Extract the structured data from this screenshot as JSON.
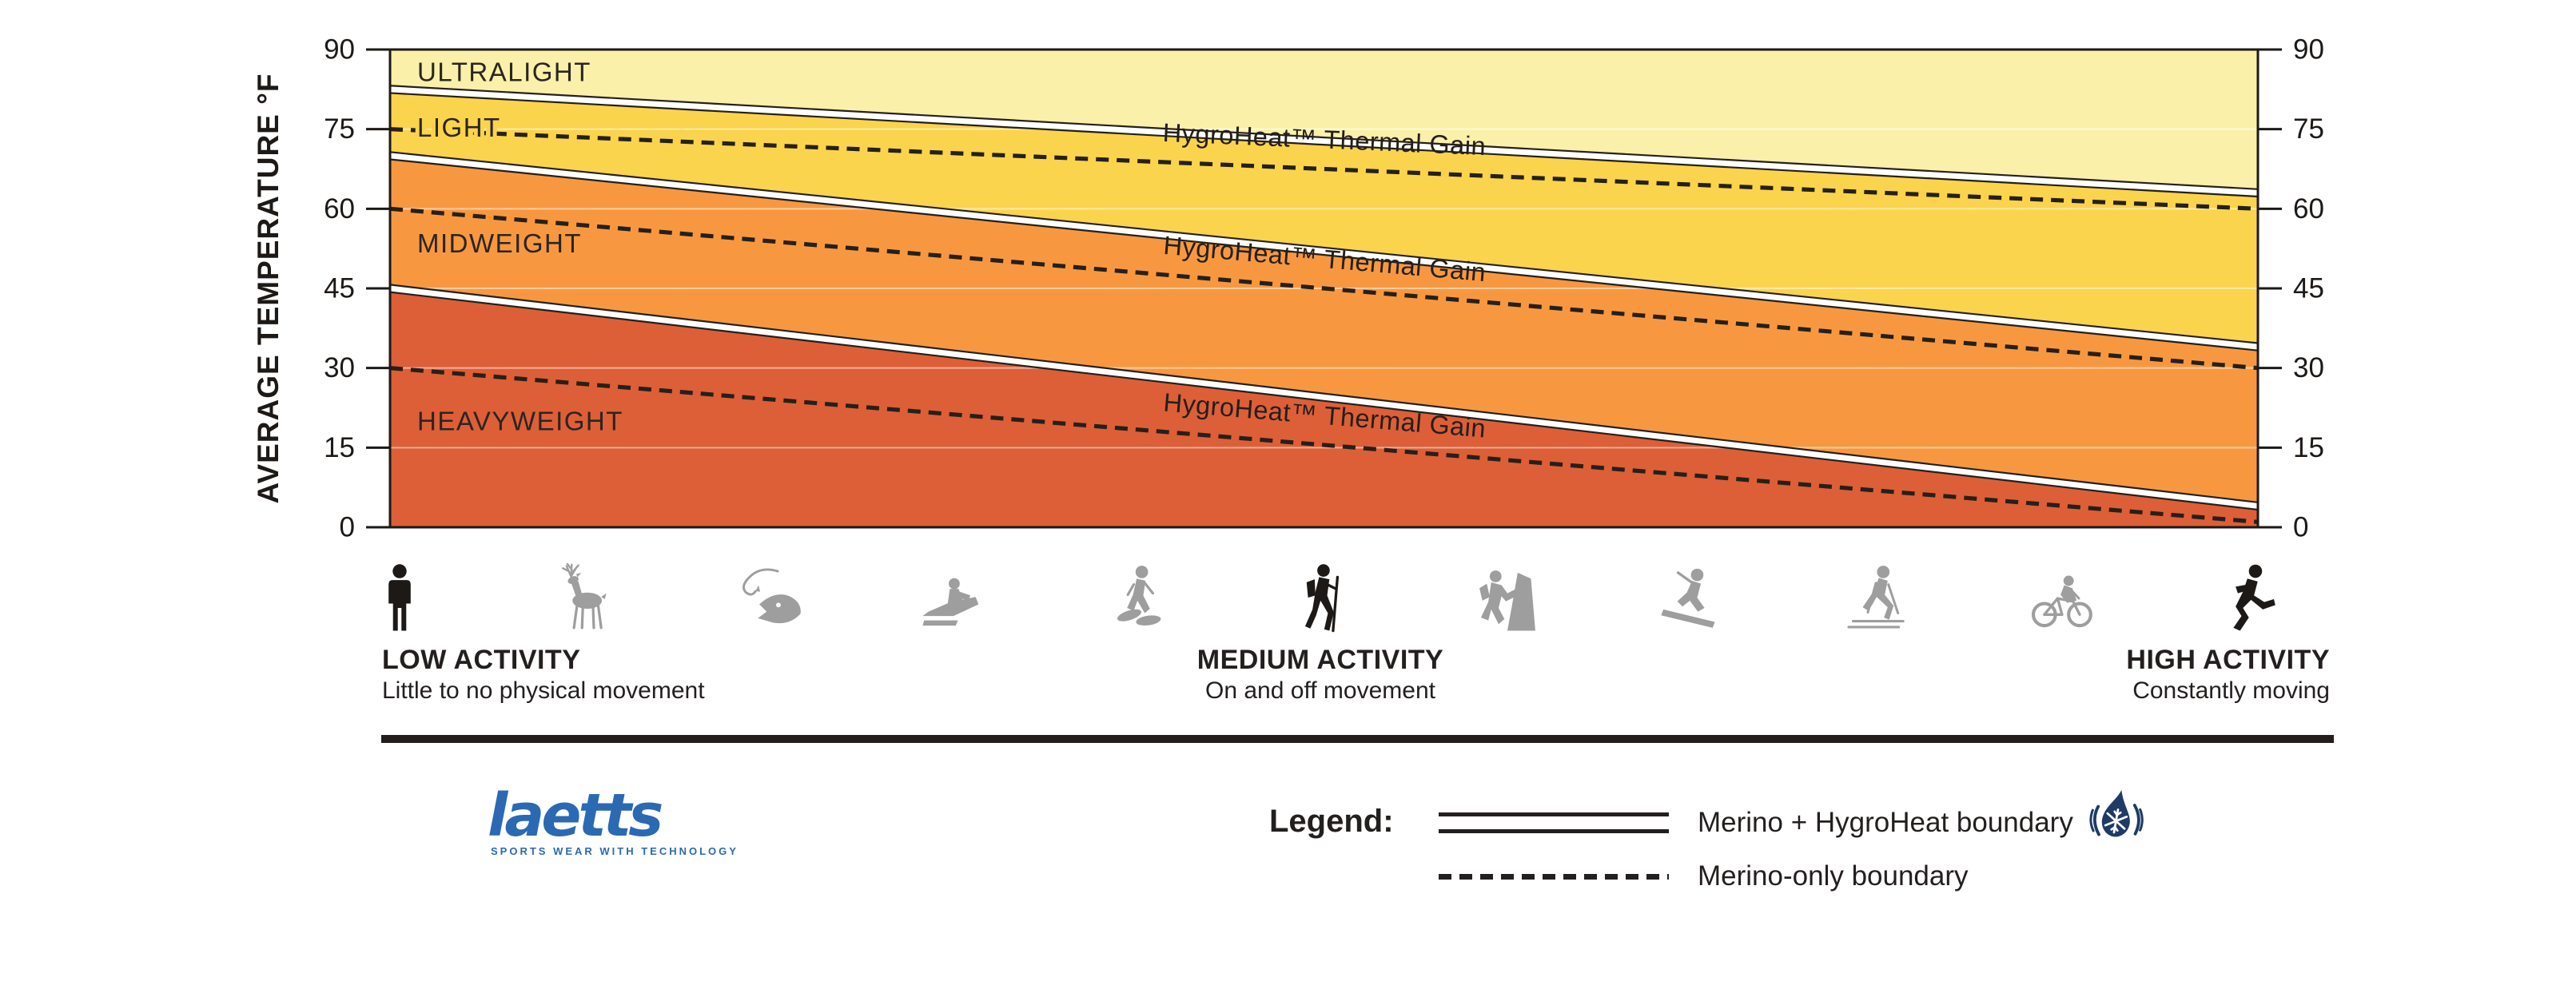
{
  "chart_data": {
    "type": "area",
    "title": "",
    "ylabel": "AVERAGE TEMPERATURE °F",
    "ylim": [
      0,
      90
    ],
    "yticks": [
      0,
      15,
      30,
      45,
      60,
      75,
      90
    ],
    "grid": true,
    "right_axis_mirrored": true,
    "bands": [
      {
        "name": "ULTRALIGHT",
        "color": "#FBF0A9",
        "top": {
          "left": 90,
          "right": 90
        },
        "bottom": {
          "left": 82.5,
          "right": 63
        },
        "label_temp": 85.8
      },
      {
        "name": "LIGHT",
        "color": "#FBD44D",
        "top": {
          "left": 82.5,
          "right": 63
        },
        "bottom": {
          "left": 70,
          "right": 34
        },
        "label_temp": 75.3
      },
      {
        "name": "MIDWEIGHT",
        "color": "#F79840",
        "top": {
          "left": 70,
          "right": 34
        },
        "bottom": {
          "left": 45,
          "right": 4
        },
        "label_temp": 53.5
      },
      {
        "name": "HEAVYWEIGHT",
        "color": "#DD5F37",
        "top": {
          "left": 45,
          "right": 4
        },
        "bottom": {
          "left": 0,
          "right": 0
        },
        "label_temp": 20
      }
    ],
    "hygroheat_boundaries": [
      {
        "between": "ULTRALIGHT/LIGHT",
        "left": 82.5,
        "right": 63
      },
      {
        "between": "LIGHT/MIDWEIGHT",
        "left": 70,
        "right": 34
      },
      {
        "between": "MIDWEIGHT/HEAVYWEIGHT",
        "left": 45,
        "right": 4
      }
    ],
    "merino_only_lines": [
      {
        "band": "LIGHT",
        "left": 75,
        "right": 60,
        "label": "HygroHeat™ Thermal Gain"
      },
      {
        "band": "MIDWEIGHT",
        "left": 60,
        "right": 30,
        "label": "HygroHeat™ Thermal Gain"
      },
      {
        "band": "HEAVYWEIGHT",
        "left": 30,
        "right": 1,
        "label": "HygroHeat™ Thermal Gain"
      }
    ]
  },
  "activities": {
    "icons": [
      {
        "name": "standing-person",
        "emphasis": true
      },
      {
        "name": "deer-hunting",
        "emphasis": false
      },
      {
        "name": "fishing",
        "emphasis": false
      },
      {
        "name": "snowmobiling",
        "emphasis": false
      },
      {
        "name": "snowshoeing",
        "emphasis": false
      },
      {
        "name": "hiking",
        "emphasis": true
      },
      {
        "name": "climbing",
        "emphasis": false
      },
      {
        "name": "snowboarding",
        "emphasis": false
      },
      {
        "name": "cross-country-skiing",
        "emphasis": false
      },
      {
        "name": "cycling",
        "emphasis": false
      },
      {
        "name": "running",
        "emphasis": true
      }
    ],
    "groups": [
      {
        "title": "LOW ACTIVITY",
        "subtitle": "Little to no physical movement"
      },
      {
        "title": "MEDIUM ACTIVITY",
        "subtitle": "On and off movement"
      },
      {
        "title": "HIGH ACTIVITY",
        "subtitle": "Constantly moving"
      }
    ]
  },
  "footer": {
    "logo": {
      "text": "laetts",
      "tagline": "SPORTS WEAR WITH TECHNOLOGY"
    },
    "legend": {
      "title": "Legend:",
      "items": [
        {
          "symbol": "double-line",
          "label": "Merino + HygroHeat boundary",
          "icon": "hygroheat-drop-icon"
        },
        {
          "symbol": "dashed-line",
          "label": "Merino-only boundary"
        }
      ]
    }
  },
  "colors": {
    "ink": "#231F1E",
    "icon_active": "#1D1916",
    "icon_muted": "#9E9E9E",
    "logo_blue": "#2B69B3",
    "drop_navy": "#1E3B66",
    "boundary_fill": "#FFFFFF",
    "line_black": "#262019"
  }
}
